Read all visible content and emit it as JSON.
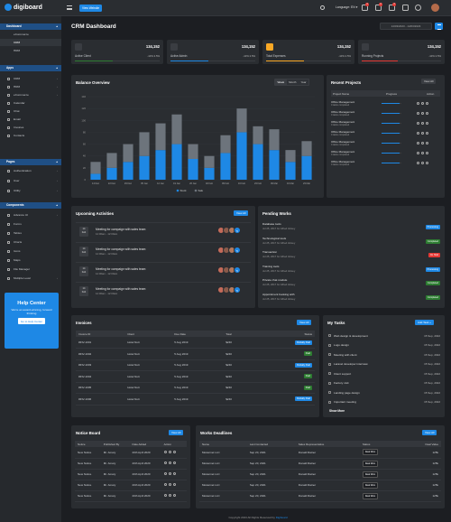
{
  "topbar": {
    "logo": "digiboard",
    "view_website": "View Website",
    "language": "Language: EN",
    "notif_badges": [
      "4",
      "2",
      "3"
    ]
  },
  "sidebar": {
    "sections": [
      {
        "title": "Dashboard",
        "items": [
          "eCommerce",
          "CRM",
          "HRM"
        ]
      },
      {
        "title": "Apps",
        "items": [
          "CRM",
          "HRM",
          "eCommerce",
          "Calendar",
          "Chat",
          "Email",
          "Invoices",
          "Contacts"
        ]
      },
      {
        "title": "Pages",
        "items": [
          "Authentication",
          "User",
          "Utility"
        ]
      },
      {
        "title": "Components",
        "items": [
          "Advance UI",
          "Forms",
          "Tables",
          "Charts",
          "Icons",
          "Maps",
          "File Manager",
          "Multiple Level"
        ]
      }
    ],
    "active_item": "CRM",
    "help": {
      "title": "Help Center",
      "text": "We're an award-winning, forward thinking",
      "button": "Go to Help Center"
    }
  },
  "page": {
    "title": "CRM Dashboard",
    "date_range": "14/03/2023 - 14/03/2023"
  },
  "stats": [
    {
      "name": "Active Client",
      "value": "134,152",
      "change": "-10% 2.5%",
      "color": "#2e7d32",
      "progress": 0.45
    },
    {
      "name": "Active Admin",
      "value": "134,152",
      "change": "-10% 2.5%",
      "color": "#1e88e5",
      "progress": 0.45
    },
    {
      "name": "Total Expenses",
      "value": "134,152",
      "change": "-10% 2.5%",
      "color": "#f9a825",
      "progress": 0.45
    },
    {
      "name": "Running Projects",
      "value": "134,152",
      "change": "-10% 2.5%",
      "color": "#e53935",
      "progress": 0.45
    }
  ],
  "balance": {
    "title": "Balance Overview",
    "tabs": [
      "Week",
      "Month",
      "Year"
    ],
    "active_tab": "Week"
  },
  "chart_data": {
    "type": "bar",
    "title": "Balance Overview",
    "categories": [
      "14 Dec",
      "22 Dec",
      "29 Dec",
      "05 Jan",
      "12 Jan",
      "19 Jan",
      "26 Jan",
      "02 Feb",
      "09 Feb",
      "16 Feb",
      "23 Feb",
      "09 Mar",
      "16 Mar",
      "23 Mar"
    ],
    "series": [
      {
        "name": "Stock",
        "values": [
          10,
          20,
          30,
          40,
          50,
          60,
          35,
          20,
          45,
          80,
          60,
          50,
          30,
          40
        ]
      },
      {
        "name": "Sale",
        "values": [
          20,
          25,
          30,
          40,
          45,
          50,
          25,
          20,
          30,
          40,
          30,
          35,
          20,
          25
        ]
      }
    ],
    "stacked": true,
    "ylim": [
      0,
      140
    ],
    "colors": [
      "#1e88e5",
      "#6d747c"
    ],
    "legend": "bottom",
    "grid": true
  },
  "recent_projects": {
    "title": "Recent Projects",
    "view_all": "View All",
    "columns": [
      "Project Name",
      "Progress",
      "Action"
    ],
    "rows": [
      {
        "name": "Office Management",
        "sub": "0 tasks completed",
        "progress": 0.9
      },
      {
        "name": "Office Management",
        "sub": "0 tasks completed",
        "progress": 0.9
      },
      {
        "name": "Office Management",
        "sub": "0 tasks completed",
        "progress": 0.9
      },
      {
        "name": "Office Management",
        "sub": "0 tasks completed",
        "progress": 0.9
      },
      {
        "name": "Office Management",
        "sub": "0 tasks completed",
        "progress": 0.9
      },
      {
        "name": "Office Management",
        "sub": "0 tasks completed",
        "progress": 0.9
      },
      {
        "name": "Office Management",
        "sub": "0 tasks completed",
        "progress": 0.9
      }
    ]
  },
  "activities": {
    "title": "Upcoming Activities",
    "view_all": "View All",
    "items": [
      {
        "day": "14",
        "month": "Feb",
        "title": "Meeting for campaign with sales team",
        "time": "12:00am - 12:00am",
        "more": "5"
      },
      {
        "day": "14",
        "month": "Feb",
        "title": "Meeting for campaign with sales team",
        "time": "12:00am - 12:00am",
        "more": "5"
      },
      {
        "day": "14",
        "month": "Feb",
        "title": "Meeting for campaign with sales team",
        "time": "12:00am - 12:00am",
        "more": "5"
      },
      {
        "day": "14",
        "month": "Feb",
        "title": "Meeting for campaign with sales team",
        "time": "12:00am - 12:00am",
        "more": "5"
      }
    ]
  },
  "pending": {
    "title": "Pending Works",
    "items": [
      {
        "title": "Database tools",
        "date": "Jul 25, 2017 for Alfred Alnsey",
        "status": "Processing",
        "color": "#1e88e5"
      },
      {
        "title": "Technological tools",
        "date": "Jul 25, 2017 for Alfred Alnsey",
        "status": "Completed",
        "color": "#2e7d32"
      },
      {
        "title": "Transaction",
        "date": "Jul 25, 2017 for Alfred Alnsey",
        "status": "On Hold",
        "color": "#e53935"
      },
      {
        "title": "Training tools",
        "date": "Jul 25, 2017 for Alfred Alnsey",
        "status": "Processing",
        "color": "#1e88e5"
      },
      {
        "title": "Private chat module",
        "date": "Jul 25, 2017 for Alfred Alnsey",
        "status": "Completed",
        "color": "#2e7d32"
      },
      {
        "title": "Appointment booking with",
        "date": "Jul 25, 2017 for Alfred Alnsey",
        "status": "Completed",
        "color": "#2e7d32"
      }
    ]
  },
  "invoices": {
    "title": "Invoices",
    "view_all": "View All",
    "columns": [
      "Invoice ID",
      "Client",
      "Due Date",
      "Total",
      "Status"
    ],
    "rows": [
      {
        "id": "#INV-1001",
        "client": "Hotel Nutt",
        "due": "5 Aug 2019",
        "total": "$240",
        "status": "Partially Paid",
        "color": "#1e88e5"
      },
      {
        "id": "#INV-1002",
        "client": "Hotel Nutt",
        "due": "5 Aug 2019",
        "total": "$240",
        "status": "Paid",
        "color": "#2e7d32"
      },
      {
        "id": "#INV-1003",
        "client": "Hotel Nutt",
        "due": "5 Aug 2019",
        "total": "$240",
        "status": "Partially Paid",
        "color": "#1e88e5"
      },
      {
        "id": "#INV-1004",
        "client": "Hotel Nutt",
        "due": "5 Aug 2019",
        "total": "$240",
        "status": "Paid",
        "color": "#2e7d32"
      },
      {
        "id": "#INV-1005",
        "client": "Hotel Nutt",
        "due": "5 Aug 2019",
        "total": "$240",
        "status": "Paid",
        "color": "#2e7d32"
      },
      {
        "id": "#INV-1006",
        "client": "Hotel Nutt",
        "due": "5 Aug 2019",
        "total": "$240",
        "status": "Partially Paid",
        "color": "#1e88e5"
      }
    ]
  },
  "tasks": {
    "title": "My Tasks",
    "add": "Add Task +",
    "show_more": "Show More",
    "items": [
      {
        "title": "Web design & development",
        "date": "15 Sep, 2022"
      },
      {
        "title": "Logo design",
        "date": "15 Sep, 2022"
      },
      {
        "title": "Meeting with client",
        "date": "15 Sep, 2022"
      },
      {
        "title": "Laravel developer interview",
        "date": "15 Sep, 2022"
      },
      {
        "title": "Client support",
        "date": "15 Sep, 2022"
      },
      {
        "title": "Factory visit",
        "date": "15 Sep, 2022"
      },
      {
        "title": "Landing page design",
        "date": "15 Sep, 2022"
      },
      {
        "title": "Important meeting",
        "date": "15 Sep, 2022"
      }
    ]
  },
  "notice": {
    "title": "Notice Board",
    "view_all": "View All",
    "columns": [
      "Notice",
      "Published By",
      "Date Added",
      "Action"
    ],
    "rows": [
      {
        "notice": "New Notice",
        "by": "Mr. Amary",
        "date": "20th April 2020"
      },
      {
        "notice": "New Notice",
        "by": "Mr. Amary",
        "date": "20th April 2020"
      },
      {
        "notice": "New Notice",
        "by": "Mr. Amary",
        "date": "20th April 2020"
      },
      {
        "notice": "New Notice",
        "by": "Mr. Amary",
        "date": "20th April 2020"
      },
      {
        "notice": "New Notice",
        "by": "Mr. Amary",
        "date": "20th April 2020"
      }
    ]
  },
  "deadlines": {
    "title": "Works Deadlines",
    "view_all": "View All",
    "columns": [
      "Name",
      "Last Contacted",
      "Sales Representative",
      "Status",
      "Deal Value"
    ],
    "rows": [
      {
        "name": "Mosternet LLC",
        "last": "Sep 20, 2021",
        "rep": "Donald Ratner",
        "status": "Deal Won",
        "value": "125k"
      },
      {
        "name": "Mosternet LLC",
        "last": "Sep 20, 2021",
        "rep": "Donald Ratner",
        "status": "Deal Won",
        "value": "125k"
      },
      {
        "name": "Mosternet LLC",
        "last": "Sep 20, 2021",
        "rep": "Donald Ratner",
        "status": "Deal Won",
        "value": "125k"
      },
      {
        "name": "Mosternet LLC",
        "last": "Sep 20, 2021",
        "rep": "Donald Ratner",
        "status": "Deal Won",
        "value": "125k"
      },
      {
        "name": "Mosternet LLC",
        "last": "Sep 20, 2021",
        "rep": "Donald Ratner",
        "status": "Deal Won",
        "value": "125k"
      }
    ]
  },
  "footer": {
    "text": "Copyright 2023 All Rights Reserved by",
    "brand": "Digiboard"
  }
}
